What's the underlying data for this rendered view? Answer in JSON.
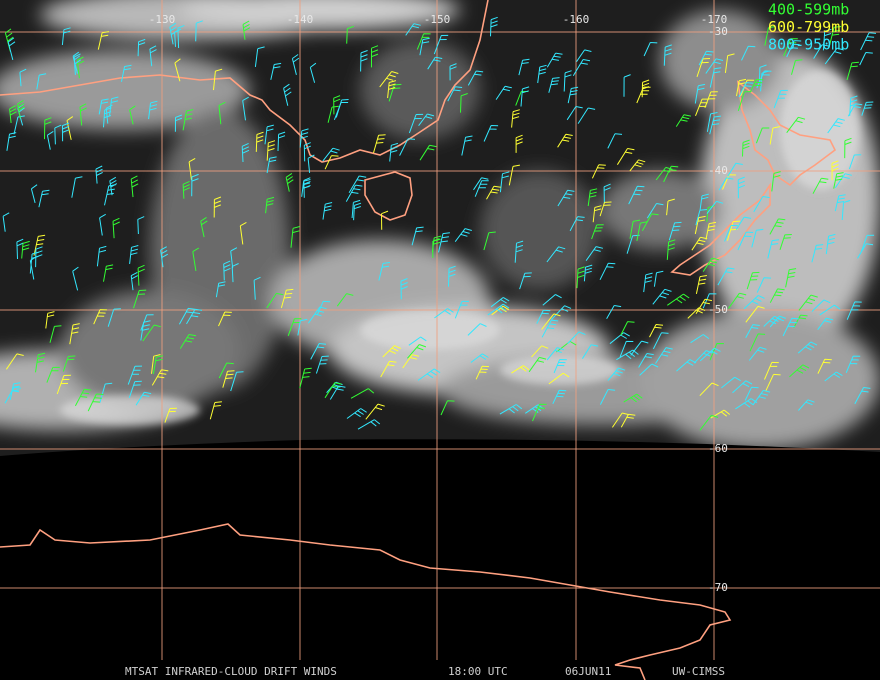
{
  "map": {
    "longitude_labels": [
      "-130",
      "-140",
      "-150",
      "-160",
      "-170"
    ],
    "latitude_labels": [
      "-30",
      "-40",
      "-50",
      "-60",
      "-70"
    ],
    "legend": [
      {
        "label": "400-599mb",
        "color": "#33ff33"
      },
      {
        "label": "600-799mb",
        "color": "#ffff33"
      },
      {
        "label": "800-950mb",
        "color": "#33e8ff"
      }
    ],
    "footer": [
      "MTSAT INFRARED-CLOUD DRIFT WINDS",
      "18:00 UTC",
      "06JUN11",
      "UW-CIMSS"
    ]
  }
}
